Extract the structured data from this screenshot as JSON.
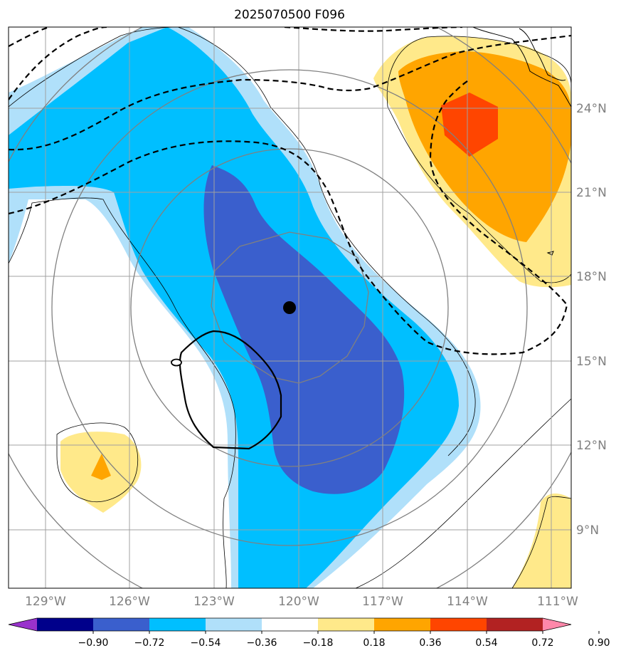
{
  "title": "2025070500 F096",
  "map": {
    "lon_labels": [
      "129°W",
      "126°W",
      "123°W",
      "120°W",
      "117°W",
      "114°W",
      "111°W"
    ],
    "lat_labels": [
      "24°N",
      "21°N",
      "18°N",
      "15°N",
      "12°N",
      "9°N"
    ],
    "lon_range": [
      -130.3,
      -110.3
    ],
    "lat_range": [
      7.0,
      27.0
    ],
    "gridlines": true,
    "storm_center": {
      "lon": -120.3,
      "lat": 16.9
    }
  },
  "colorbar": {
    "ticks": [
      "−0.90",
      "−0.72",
      "−0.54",
      "−0.36",
      "−0.18",
      "0.18",
      "0.36",
      "0.54",
      "0.72",
      "0.90"
    ],
    "colors": [
      "#9932cc",
      "#00008b",
      "#3a5fcd",
      "#00bfff",
      "#b0e0fa",
      "#ffffff",
      "#ffe98a",
      "#ffa500",
      "#ff4500",
      "#b22222",
      "#ff88aa"
    ],
    "extend": "both"
  },
  "colors": {
    "light_blue": "#b0e0fa",
    "deep_sky_blue": "#00bfff",
    "royal_blue": "#3a5fcd",
    "light_yellow": "#ffe98a",
    "orange": "#ffa500",
    "orange_red": "#ff4500",
    "grid": "#a0a0a0",
    "range_rings": "#808080"
  }
}
